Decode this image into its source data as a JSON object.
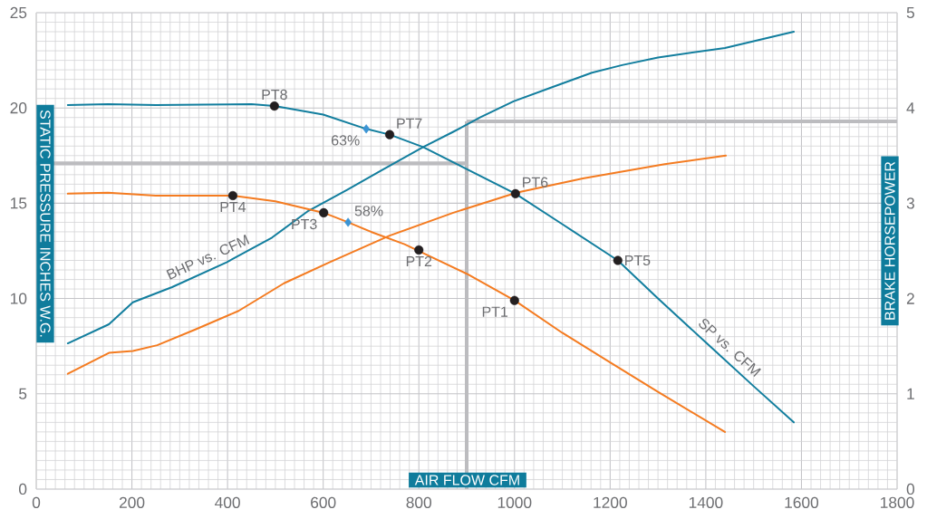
{
  "chart_data": {
    "type": "line",
    "xlabel": "AIR FLOW CFM",
    "ylabel": "STATIC PRESSURE INCHES W.G.",
    "y2label": "BRAKE HORSEPOWER",
    "xlim": [
      0,
      1800
    ],
    "xticks": [
      0,
      200,
      400,
      600,
      800,
      1000,
      1200,
      1400,
      1600,
      1800
    ],
    "ylim": [
      0,
      25
    ],
    "yticks": [
      0,
      5,
      10,
      15,
      20,
      25
    ],
    "y2lim": [
      0,
      5
    ],
    "y2ticks": [
      0,
      1,
      2,
      3,
      4,
      5
    ],
    "grid": true,
    "series": [
      {
        "name": "SP vs. CFM",
        "color": "#127e9e",
        "x": [
          66,
          150,
          250,
          350,
          450,
          498,
          600,
          690,
          739,
          809,
          1002,
          1100,
          1216,
          1300,
          1400,
          1500,
          1584
        ],
        "values": [
          20.15,
          20.2,
          20.15,
          20.18,
          20.2,
          20.1,
          19.65,
          18.9,
          18.6,
          17.95,
          15.5,
          13.9,
          12.0,
          10.0,
          7.7,
          5.4,
          3.5
        ]
      },
      {
        "color": "#f47b20",
        "x": [
          66,
          150,
          250,
          330,
          411,
          500,
          601,
          652,
          700,
          770,
          900,
          1000,
          1100,
          1200,
          1300,
          1440
        ],
        "values": [
          15.5,
          15.55,
          15.4,
          15.4,
          15.4,
          15.1,
          14.5,
          14.0,
          13.5,
          12.85,
          11.3,
          9.9,
          8.2,
          6.65,
          5.1,
          3.0
        ]
      },
      {
        "name": "BHP vs. CFM",
        "axis": "y2",
        "color": "#127e9e",
        "x": [
          66,
          152,
          202,
          284,
          398,
          493,
          569,
          650,
          720,
          809,
          872,
          928,
          998,
          1080,
          1162,
          1225,
          1300,
          1440,
          1584
        ],
        "values": [
          1.53,
          1.73,
          1.96,
          2.12,
          2.38,
          2.64,
          2.92,
          3.14,
          3.34,
          3.59,
          3.75,
          3.9,
          4.07,
          4.22,
          4.37,
          4.45,
          4.53,
          4.63,
          4.8
        ]
      },
      {
        "axis": "y2",
        "color": "#f47b20",
        "x": [
          66,
          152,
          202,
          253,
          335,
          423,
          518,
          613,
          739,
          872,
          928,
          1004,
          1143,
          1314,
          1442
        ],
        "values": [
          1.21,
          1.43,
          1.45,
          1.51,
          1.68,
          1.87,
          2.16,
          2.38,
          2.66,
          2.9,
          2.99,
          3.11,
          3.26,
          3.41,
          3.5
        ]
      },
      {
        "type": "scatter",
        "marker": "circle",
        "color": "#231f20",
        "x": [
          1000,
          800,
          601,
          411,
          1216,
          1002,
          739,
          498
        ],
        "values": [
          9.9,
          12.55,
          14.5,
          15.4,
          12.0,
          15.5,
          18.6,
          20.1
        ]
      },
      {
        "type": "scatter",
        "marker": "diamond",
        "color": "#3b94d4",
        "x": [
          690,
          652
        ],
        "values": [
          18.9,
          14.0
        ]
      }
    ],
    "ref_lines": [
      {
        "axis": "y",
        "value": 17.1,
        "color": "#bcbcbf"
      },
      {
        "axis": "x",
        "value": 900,
        "color": "#bcbcbf"
      },
      {
        "axis": "y2",
        "value": 3.86,
        "color": "#bcbcbf"
      }
    ],
    "annotations": [
      {
        "text": "PT1",
        "x": 1000,
        "y": 9.9
      },
      {
        "text": "PT2",
        "x": 800,
        "y": 12.55
      },
      {
        "text": "PT3",
        "x": 601,
        "y": 14.5
      },
      {
        "text": "PT4",
        "x": 411,
        "y": 15.4
      },
      {
        "text": "PT5",
        "x": 1216,
        "y": 12.0
      },
      {
        "text": "PT6",
        "x": 1002,
        "y": 15.5
      },
      {
        "text": "PT7",
        "x": 739,
        "y": 18.6
      },
      {
        "text": "PT8",
        "x": 498,
        "y": 20.1
      },
      {
        "text": "63%",
        "x": 690,
        "y": 18.9
      },
      {
        "text": "58%",
        "x": 652,
        "y": 14.0
      }
    ]
  }
}
